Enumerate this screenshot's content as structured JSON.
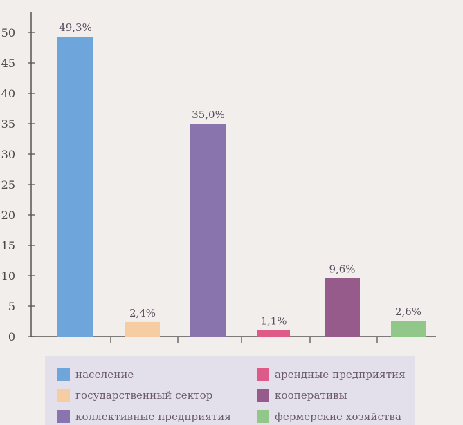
{
  "chart_data": {
    "type": "bar",
    "title": "",
    "xlabel": "",
    "ylabel": "",
    "ylim": [
      0,
      52
    ],
    "yticks": [
      0,
      5,
      10,
      15,
      20,
      25,
      30,
      35,
      40,
      45,
      50
    ],
    "grid": false,
    "legend_position": "bottom",
    "series": [
      {
        "name": "население",
        "value": 49.3,
        "label": "49,3%",
        "color": "#6ea5da"
      },
      {
        "name": "государственный сектор",
        "value": 2.4,
        "label": "2,4%",
        "color": "#f6cda3"
      },
      {
        "name": "коллективные предприятия",
        "value": 35.0,
        "label": "35,0%",
        "color": "#8a74ae"
      },
      {
        "name": "арендные предприятия",
        "value": 1.1,
        "label": "1,1%",
        "color": "#de5b89"
      },
      {
        "name": "кооперативы",
        "value": 9.6,
        "label": "9,6%",
        "color": "#965a8b"
      },
      {
        "name": "фермерские хозяйства",
        "value": 2.6,
        "label": "2,6%",
        "color": "#92c78a"
      }
    ]
  }
}
